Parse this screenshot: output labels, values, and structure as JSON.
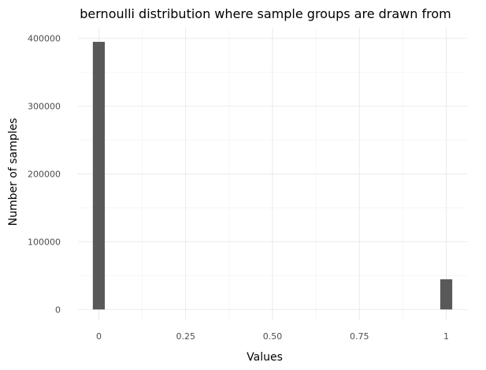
{
  "chart_data": {
    "type": "bar",
    "title": "bernoulli distribution where sample groups are drawn from",
    "xlabel": "Values",
    "ylabel": "Number of samples",
    "xlim": [
      -0.06,
      1.06
    ],
    "ylim": [
      -16000,
      416000
    ],
    "x_ticks": [
      0,
      0.25,
      0.5,
      0.75,
      1
    ],
    "x_tick_labels": [
      "0",
      "0.25",
      "0.50",
      "0.75",
      "1"
    ],
    "y_ticks": [
      0,
      100000,
      200000,
      300000,
      400000
    ],
    "y_tick_labels": [
      "0",
      "100000",
      "200000",
      "300000",
      "400000"
    ],
    "categories": [
      "0",
      "1"
    ],
    "x": [
      0,
      1
    ],
    "values": [
      395000,
      44500
    ],
    "grid": true,
    "bar_color": "#595959"
  }
}
